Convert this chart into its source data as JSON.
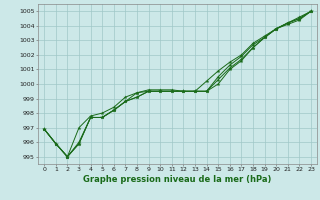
{
  "x": [
    0,
    1,
    2,
    3,
    4,
    5,
    6,
    7,
    8,
    9,
    10,
    11,
    12,
    13,
    14,
    15,
    16,
    17,
    18,
    19,
    20,
    21,
    22,
    23
  ],
  "line1": [
    996.9,
    995.9,
    995.0,
    995.9,
    997.7,
    997.7,
    998.2,
    998.8,
    999.1,
    999.5,
    999.5,
    999.5,
    999.5,
    999.5,
    999.5,
    1000.0,
    1001.0,
    1001.6,
    1002.5,
    1003.2,
    1003.8,
    1004.1,
    1004.4,
    1005.0
  ],
  "line2": [
    996.9,
    995.9,
    995.0,
    995.9,
    997.7,
    997.7,
    998.2,
    998.8,
    999.4,
    999.5,
    999.5,
    999.5,
    999.5,
    999.5,
    999.5,
    1000.5,
    1001.3,
    1001.9,
    1002.7,
    1003.2,
    1003.8,
    1004.2,
    1004.5,
    1005.0
  ],
  "line3": [
    996.9,
    995.9,
    995.0,
    997.0,
    997.8,
    998.0,
    998.4,
    999.1,
    999.4,
    999.6,
    999.6,
    999.6,
    999.5,
    999.5,
    1000.2,
    1000.9,
    1001.5,
    1002.0,
    1002.8,
    1003.3,
    1003.8,
    1004.2,
    1004.6,
    1005.0
  ],
  "line4": [
    996.9,
    995.9,
    995.0,
    996.0,
    997.7,
    997.7,
    998.2,
    998.8,
    999.1,
    999.5,
    999.5,
    999.5,
    999.5,
    999.5,
    999.5,
    1000.3,
    1001.1,
    1001.7,
    1002.5,
    1003.2,
    1003.8,
    1004.2,
    1004.5,
    1005.0
  ],
  "line_color": "#1a6b1a",
  "bg_color": "#cce8e8",
  "grid_color": "#a0c8c8",
  "xlabel": "Graphe pression niveau de la mer (hPa)",
  "ylim": [
    994.5,
    1005.5
  ],
  "yticks": [
    995,
    996,
    997,
    998,
    999,
    1000,
    1001,
    1002,
    1003,
    1004,
    1005
  ],
  "xticks": [
    0,
    1,
    2,
    3,
    4,
    5,
    6,
    7,
    8,
    9,
    10,
    11,
    12,
    13,
    14,
    15,
    16,
    17,
    18,
    19,
    20,
    21,
    22,
    23
  ],
  "tick_fontsize": 4.5,
  "xlabel_fontsize": 6.0
}
